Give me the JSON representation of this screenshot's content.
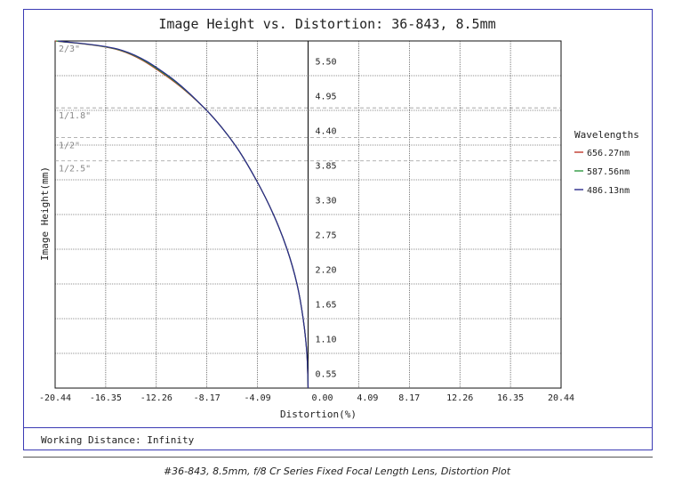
{
  "chart_data": {
    "type": "line",
    "title": "Image Height vs. Distortion: 36-843, 8.5mm",
    "xlabel": "Distortion(%)",
    "ylabel": "Image Height(mm)",
    "xlim": [
      -20.44,
      20.44
    ],
    "ylim": [
      0,
      5.5
    ],
    "x_ticks": [
      "-20.44",
      "-16.35",
      "-12.26",
      "-8.17",
      "-4.09",
      "0.00",
      "4.09",
      "8.17",
      "12.26",
      "16.35",
      "20.44"
    ],
    "y_ticks": [
      "0.55",
      "1.10",
      "1.65",
      "2.20",
      "2.75",
      "3.30",
      "3.85",
      "4.40",
      "4.95",
      "5.50"
    ],
    "grid": true,
    "legend_title": "Wavelengths",
    "legend_placement": "right",
    "series": [
      {
        "name": "656.27nm",
        "color": "#c0392b",
        "points": [
          [
            0,
            0
          ],
          [
            -0.1,
            0.55
          ],
          [
            -0.4,
            1.1
          ],
          [
            -0.9,
            1.65
          ],
          [
            -1.7,
            2.2
          ],
          [
            -2.8,
            2.75
          ],
          [
            -4.2,
            3.3
          ],
          [
            -5.9,
            3.85
          ],
          [
            -8.2,
            4.4
          ],
          [
            -11.5,
            4.95
          ],
          [
            -15.2,
            5.35
          ],
          [
            -20.5,
            5.85
          ]
        ]
      },
      {
        "name": "587.56nm",
        "color": "#2e9a40",
        "points": [
          [
            0,
            0
          ],
          [
            -0.1,
            0.55
          ],
          [
            -0.4,
            1.1
          ],
          [
            -0.9,
            1.65
          ],
          [
            -1.7,
            2.2
          ],
          [
            -2.8,
            2.75
          ],
          [
            -4.2,
            3.3
          ],
          [
            -5.9,
            3.85
          ],
          [
            -8.2,
            4.4
          ],
          [
            -11.4,
            4.95
          ],
          [
            -15.1,
            5.35
          ],
          [
            -20.35,
            5.85
          ]
        ]
      },
      {
        "name": "486.13nm",
        "color": "#2a2a8c",
        "points": [
          [
            0,
            0
          ],
          [
            -0.1,
            0.55
          ],
          [
            -0.4,
            1.1
          ],
          [
            -0.9,
            1.65
          ],
          [
            -1.7,
            2.2
          ],
          [
            -2.8,
            2.75
          ],
          [
            -4.2,
            3.3
          ],
          [
            -5.9,
            3.85
          ],
          [
            -8.2,
            4.4
          ],
          [
            -11.3,
            4.95
          ],
          [
            -15.0,
            5.35
          ],
          [
            -20.2,
            5.85
          ]
        ]
      }
    ],
    "sensor_markers": [
      {
        "label": "2/3\"",
        "y": 5.5
      },
      {
        "label": "1/1.8\"",
        "y": 4.44
      },
      {
        "label": "1/2\"",
        "y": 3.97
      },
      {
        "label": "1/2.5\"",
        "y": 3.6
      }
    ]
  },
  "footer": {
    "working_distance": "Working Distance: Infinity"
  },
  "caption": "#36-843, 8.5mm, f/8 Cr Series Fixed Focal Length Lens, Distortion Plot"
}
